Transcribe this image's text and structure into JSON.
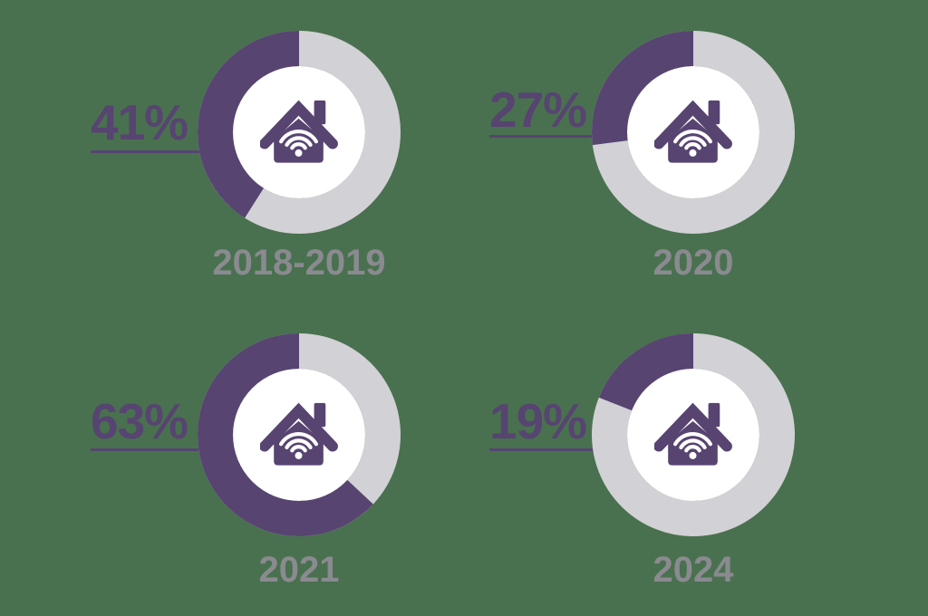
{
  "chart_data": {
    "type": "pie",
    "subtype": "donut-grid",
    "unit": "%",
    "fill_direction": "counterclockwise-from-top",
    "legend": "none",
    "center_icon": "smart-home-wifi-icon",
    "colors": {
      "filled": "#574471",
      "remainder": "#D2D1D5",
      "hole": "#FFFFFF",
      "percent_text": "#574471",
      "year_label": "#8A8A90",
      "background": "#49714F"
    },
    "charts": [
      {
        "year_label": "2018-2019",
        "percent": 41,
        "percent_label": "41%"
      },
      {
        "year_label": "2020",
        "percent": 27,
        "percent_label": "27%"
      },
      {
        "year_label": "2021",
        "percent": 63,
        "percent_label": "63%"
      },
      {
        "year_label": "2024",
        "percent": 19,
        "percent_label": "19%"
      }
    ]
  }
}
